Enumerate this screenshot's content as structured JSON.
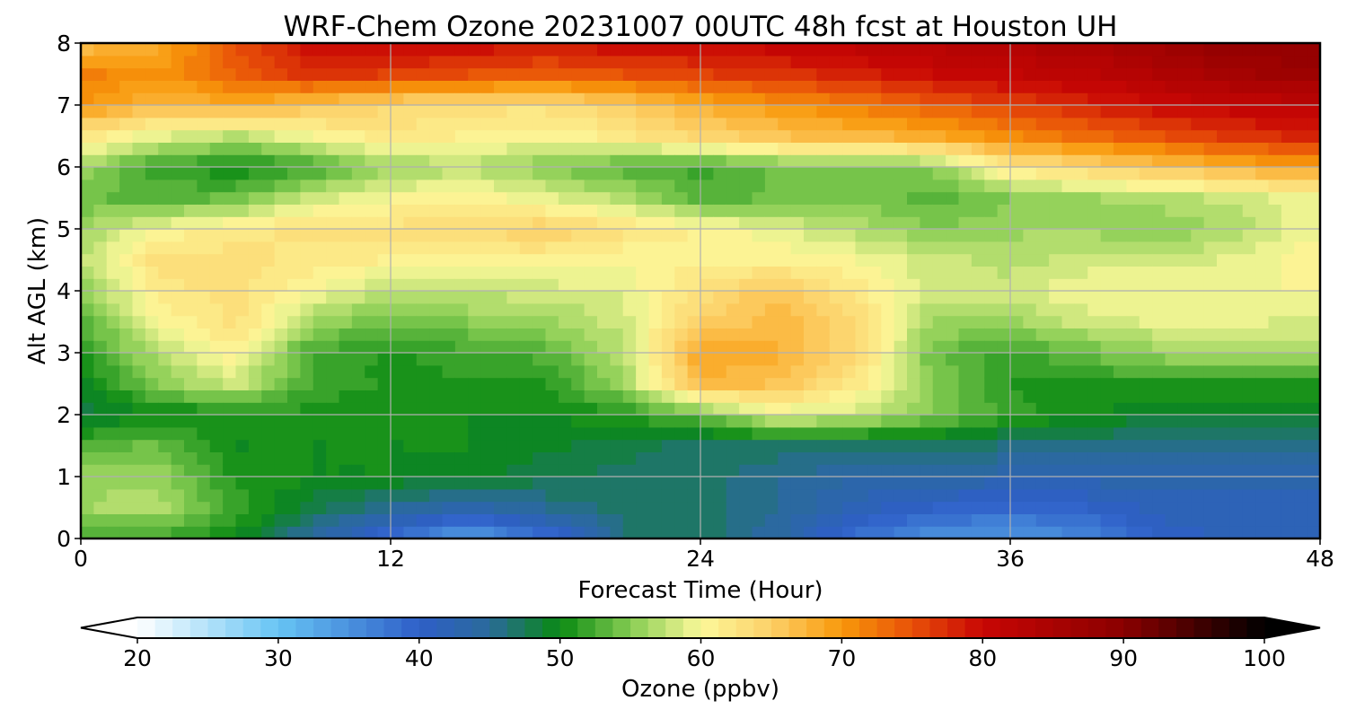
{
  "chart_data": {
    "type": "heatmap",
    "title": "WRF-Chem Ozone  20231007 00UTC 48h fcst at Houston UH",
    "xlabel": "Forecast Time (Hour)",
    "ylabel": "Alt AGL (km)",
    "xlim": [
      0,
      48
    ],
    "ylim": [
      0,
      8
    ],
    "xticks": [
      0,
      12,
      24,
      36,
      48
    ],
    "yticks": [
      0,
      1,
      2,
      3,
      4,
      5,
      6,
      7,
      8
    ],
    "grid": true,
    "x": [
      0,
      3,
      6,
      9,
      12,
      15,
      18,
      21,
      24,
      27,
      30,
      33,
      36,
      39,
      42,
      45,
      48
    ],
    "y": [
      0,
      0.5,
      1,
      1.5,
      2,
      2.5,
      3,
      3.5,
      4,
      4.5,
      5,
      5.5,
      6,
      6.5,
      7,
      7.5,
      8
    ],
    "z": [
      [
        52,
        52,
        50,
        44,
        38,
        33,
        38,
        46,
        47,
        44,
        38,
        35,
        34,
        36,
        40,
        42,
        42
      ],
      [
        56,
        57,
        52,
        48,
        45,
        43,
        45,
        47,
        47,
        45,
        42,
        40,
        39,
        40,
        42,
        42,
        42
      ],
      [
        56,
        56,
        51,
        50,
        50,
        49,
        48,
        47,
        47,
        45,
        44,
        44,
        43,
        43,
        43,
        43,
        43
      ],
      [
        53,
        54,
        50,
        50,
        50,
        50,
        49,
        48,
        47,
        47,
        47,
        47,
        46,
        46,
        46,
        46,
        46
      ],
      [
        48,
        50,
        50,
        51,
        50,
        50,
        50,
        51,
        54,
        59,
        58,
        55,
        52,
        50,
        49,
        49,
        49
      ],
      [
        49,
        55,
        58,
        52,
        51,
        51,
        51,
        56,
        67,
        66,
        62,
        55,
        51,
        51,
        51,
        51,
        51
      ],
      [
        51,
        57,
        61,
        52,
        51,
        52,
        53,
        57,
        69,
        68,
        64,
        54,
        52,
        54,
        56,
        57,
        57
      ],
      [
        53,
        60,
        63,
        56,
        54,
        55,
        56,
        58,
        65,
        67,
        64,
        56,
        56,
        58,
        59,
        59,
        58
      ],
      [
        55,
        62,
        63,
        60,
        57,
        58,
        58,
        59,
        63,
        66,
        62,
        58,
        58,
        60,
        60,
        60,
        60
      ],
      [
        57,
        63,
        63,
        62,
        61,
        61,
        61,
        60,
        61,
        61,
        60,
        58,
        57,
        58,
        58,
        59,
        61
      ],
      [
        56,
        60,
        62,
        63,
        63,
        64,
        65,
        63,
        61,
        59,
        57,
        55,
        56,
        56,
        55,
        57,
        60
      ],
      [
        54,
        53,
        54,
        58,
        60,
        61,
        59,
        57,
        53,
        54,
        55,
        53,
        55,
        56,
        57,
        58,
        60
      ],
      [
        56,
        52,
        50,
        52,
        56,
        57,
        55,
        53,
        52,
        54,
        54,
        55,
        62,
        64,
        66,
        68,
        69
      ],
      [
        62,
        59,
        57,
        60,
        62,
        61,
        60,
        62,
        64,
        66,
        67,
        68,
        71,
        73,
        75,
        77,
        78
      ],
      [
        70,
        67,
        68,
        66,
        64,
        63,
        63,
        65,
        68,
        70,
        72,
        74,
        76,
        78,
        80,
        81,
        82
      ],
      [
        72,
        70,
        74,
        77,
        76,
        75,
        74,
        75,
        76,
        77,
        78,
        80,
        81,
        82,
        84,
        86,
        87
      ],
      [
        66,
        68,
        75,
        80,
        81,
        80,
        79,
        80,
        80,
        81,
        82,
        83,
        84,
        85,
        87,
        89,
        89
      ]
    ],
    "colorbar": {
      "label": "Ozone  (ppbv)",
      "min": 20,
      "max": 100,
      "ticks": [
        20,
        30,
        40,
        50,
        60,
        70,
        80,
        90,
        100
      ],
      "extend": "both",
      "colors": [
        {
          "v": 20,
          "c": "#ffffff"
        },
        {
          "v": 30,
          "c": "#66c4f4"
        },
        {
          "v": 40,
          "c": "#2e5fc8"
        },
        {
          "v": 45,
          "c": "#2a6a9a"
        },
        {
          "v": 50,
          "c": "#098a12"
        },
        {
          "v": 55,
          "c": "#86cc52"
        },
        {
          "v": 60,
          "c": "#fcf89a"
        },
        {
          "v": 65,
          "c": "#fcd068"
        },
        {
          "v": 70,
          "c": "#f8980a"
        },
        {
          "v": 75,
          "c": "#e85008"
        },
        {
          "v": 80,
          "c": "#c80604"
        },
        {
          "v": 90,
          "c": "#8a0000"
        },
        {
          "v": 100,
          "c": "#000000"
        }
      ]
    }
  }
}
